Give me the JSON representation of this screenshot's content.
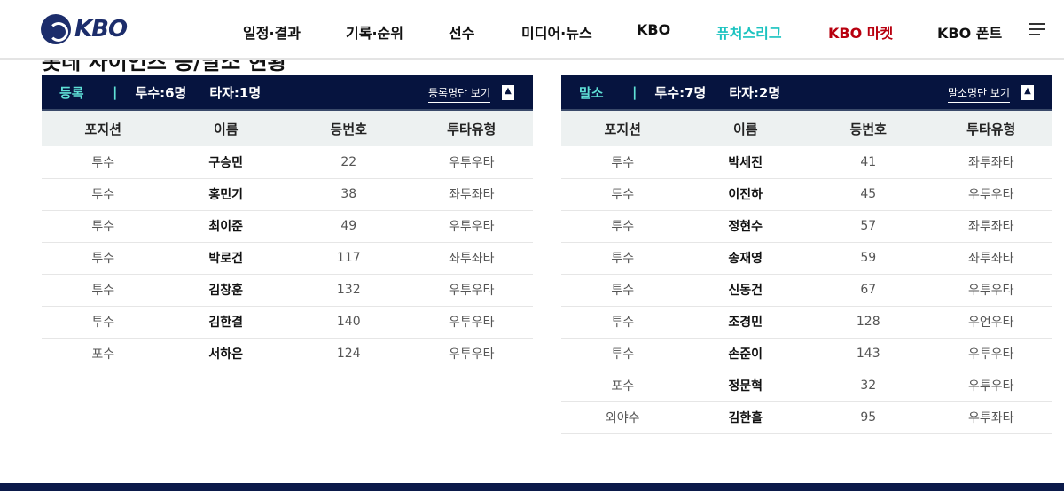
{
  "header": {
    "logo": "KBO",
    "nav": [
      "일정·결과",
      "기록·순위",
      "선수",
      "미디어·뉴스",
      "KBO",
      "퓨처스리그",
      "KBO 마켓",
      "KBO 폰트"
    ],
    "nav_colors": {
      "퓨처스리그": "#1cc3c0",
      "KBO 마켓": "#b8000f"
    }
  },
  "page_title": "롯데 자이언츠 등/말소 현황",
  "columns": [
    "포지션",
    "이름",
    "등번호",
    "투타유형"
  ],
  "registered": {
    "label": "등록",
    "pitchers": "투수:6명",
    "batters": "타자:1명",
    "link": "등록명단 보기",
    "rows": [
      [
        "투수",
        "구승민",
        "22",
        "우투우타"
      ],
      [
        "투수",
        "홍민기",
        "38",
        "좌투좌타"
      ],
      [
        "투수",
        "최이준",
        "49",
        "우투우타"
      ],
      [
        "투수",
        "박로건",
        "117",
        "좌투좌타"
      ],
      [
        "투수",
        "김창훈",
        "132",
        "우투우타"
      ],
      [
        "투수",
        "김한결",
        "140",
        "우투우타"
      ],
      [
        "포수",
        "서하은",
        "124",
        "우투우타"
      ]
    ]
  },
  "released": {
    "label": "말소",
    "pitchers": "투수:7명",
    "batters": "타자:2명",
    "link": "말소명단 보기",
    "rows": [
      [
        "투수",
        "박세진",
        "41",
        "좌투좌타"
      ],
      [
        "투수",
        "이진하",
        "45",
        "우투우타"
      ],
      [
        "투수",
        "정현수",
        "57",
        "좌투좌타"
      ],
      [
        "투수",
        "송재영",
        "59",
        "좌투좌타"
      ],
      [
        "투수",
        "신동건",
        "67",
        "우투우타"
      ],
      [
        "투수",
        "조경민",
        "128",
        "우언우타"
      ],
      [
        "투수",
        "손준이",
        "143",
        "우투우타"
      ],
      [
        "포수",
        "정문혁",
        "32",
        "우투우타"
      ],
      [
        "외야수",
        "김한홀",
        "95",
        "우투좌타"
      ]
    ]
  }
}
